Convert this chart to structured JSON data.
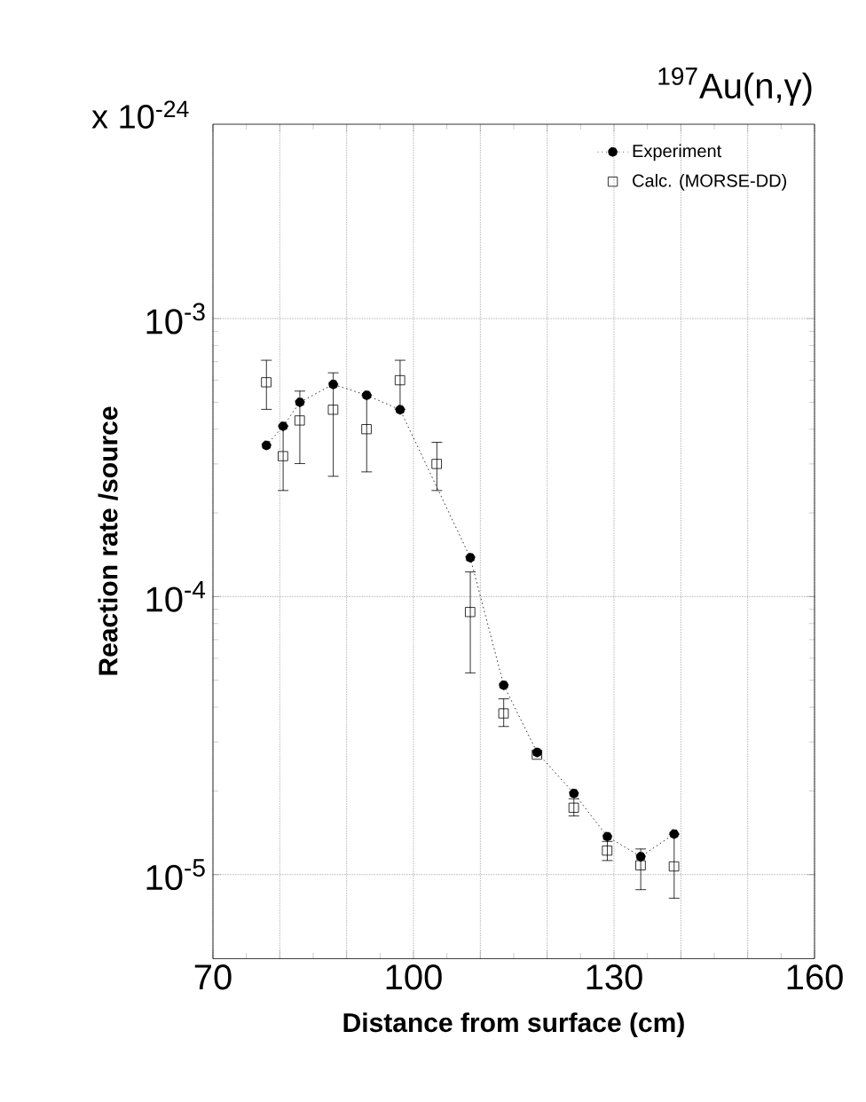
{
  "chart_data": {
    "type": "scatter",
    "title": "$^{197}$Au(n,γ)",
    "annotations": [
      "x 10$^{-24}$"
    ],
    "xlabel": "Distance from surface (cm)",
    "ylabel": "Reaction rate /source",
    "xlim": [
      70,
      160
    ],
    "ylim": [
      5e-06,
      0.005
    ],
    "log": "y",
    "grid": true,
    "legend": "top right",
    "xticks": [
      70,
      {
        "value": 80,
        "label": null
      },
      {
        "value": 90,
        "label": null
      },
      100,
      {
        "value": 110,
        "label": null
      },
      {
        "value": 120,
        "label": null
      },
      130,
      {
        "value": 140,
        "label": null
      },
      {
        "value": 150,
        "label": null
      },
      160
    ],
    "yticks": [
      {
        "value": 1e-05,
        "label": "10$^{-5}$"
      },
      {
        "value": 0.0001,
        "label": "10$^{-4}$"
      },
      {
        "value": 0.001,
        "label": "10$^{-3}$"
      }
    ],
    "series": [
      {
        "name": "Experiment",
        "type": "line",
        "color": "#000000",
        "marker": "circle",
        "line_style": "dotted",
        "x": [
          78,
          80.5,
          83,
          88,
          93,
          98,
          108.5,
          113.5,
          118.5,
          124,
          129,
          134,
          139
        ],
        "values": [
          0.00035,
          0.00041,
          0.0005,
          0.00058,
          0.00053,
          0.00047,
          0.000138,
          4.8e-05,
          2.75e-05,
          1.96e-05,
          1.37e-05,
          1.16e-05,
          1.4e-05
        ]
      },
      {
        "name": "Calc. (MORSE-DD)",
        "color": "#000000",
        "marker": "square",
        "x": [
          78,
          80.5,
          83,
          88,
          93,
          98,
          103.5,
          108.5,
          113.5,
          118.5,
          124,
          129,
          134,
          139
        ],
        "values": [
          0.00059,
          0.00032,
          0.00043,
          0.00047,
          0.0004,
          0.0006,
          0.0003,
          8.8e-05,
          3.8e-05,
          2.7e-05,
          1.74e-05,
          1.22e-05,
          1.08e-05,
          1.07e-05
        ],
        "errors": [
          [
            0.00047,
            0.00071
          ],
          [
            0.00024,
            0.00041
          ],
          [
            0.0003,
            0.00055
          ],
          [
            0.00027,
            0.00064
          ],
          [
            0.00028,
            0.00053
          ],
          [
            0.00047,
            0.00071
          ],
          [
            0.00024,
            0.00036
          ],
          [
            5.3e-05,
            0.000123
          ],
          [
            3.4e-05,
            4.3e-05
          ],
          null,
          [
            1.62e-05,
            1.88e-05
          ],
          [
            1.12e-05,
            1.32e-05
          ],
          [
            8.8e-06,
            1.24e-05
          ],
          [
            8.2e-06,
            1.4e-05
          ]
        ]
      }
    ]
  }
}
